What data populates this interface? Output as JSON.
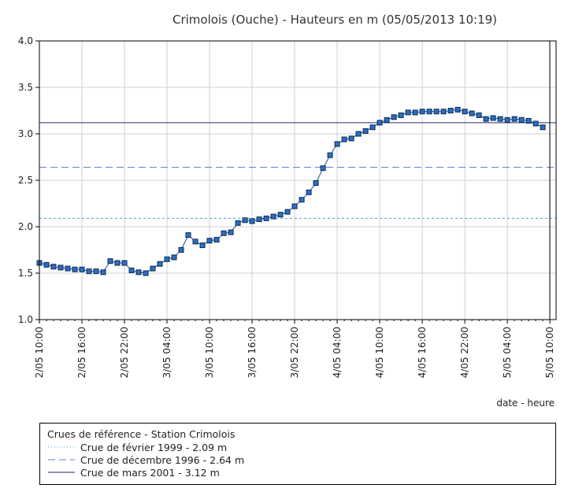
{
  "chart_data": {
    "type": "line",
    "title": "Crimolois (Ouche) - Hauteurs en m (05/05/2013 10:19)",
    "xlabel": "date - heure",
    "ylabel": "",
    "ylim": [
      1.0,
      4.0
    ],
    "yticks": [
      "1.0",
      "1.5",
      "2.0",
      "2.5",
      "3.0",
      "3.5",
      "4.0"
    ],
    "xticks": [
      "2/05 10:00",
      "2/05 16:00",
      "2/05 22:00",
      "3/05 04:00",
      "3/05 10:00",
      "3/05 16:00",
      "3/05 22:00",
      "4/05 04:00",
      "4/05 10:00",
      "4/05 16:00",
      "4/05 22:00",
      "5/05 04:00",
      "5/05 10:00"
    ],
    "x_hours_range": [
      0,
      72
    ],
    "grid": true,
    "series": [
      {
        "color": "#1f4e8c",
        "marker_color": "#2b6fc4",
        "x_hours": [
          0,
          1,
          2,
          3,
          4,
          5,
          6,
          7,
          8,
          9,
          10,
          11,
          12,
          13,
          14,
          15,
          16,
          17,
          18,
          19,
          20,
          21,
          22,
          23,
          24,
          25,
          26,
          27,
          28,
          29,
          30,
          31,
          32,
          33,
          34,
          35,
          36,
          37,
          38,
          39,
          40,
          41,
          42,
          43,
          44,
          45,
          46,
          47,
          48,
          49,
          50,
          51,
          52,
          53,
          54,
          55,
          56,
          57,
          58,
          59,
          60,
          61,
          62,
          63,
          64,
          65,
          66,
          67,
          68,
          69,
          70,
          71
        ],
        "values": [
          1.61,
          1.59,
          1.57,
          1.56,
          1.55,
          1.54,
          1.54,
          1.52,
          1.52,
          1.51,
          1.63,
          1.61,
          1.61,
          1.53,
          1.51,
          1.5,
          1.55,
          1.6,
          1.65,
          1.67,
          1.75,
          1.91,
          1.84,
          1.8,
          1.85,
          1.86,
          1.93,
          1.94,
          2.04,
          2.07,
          2.06,
          2.08,
          2.09,
          2.11,
          2.13,
          2.16,
          2.22,
          2.29,
          2.37,
          2.47,
          2.63,
          2.77,
          2.89,
          2.94,
          2.95,
          3.0,
          3.03,
          3.07,
          3.12,
          3.15,
          3.18,
          3.2,
          3.23,
          3.23,
          3.24,
          3.24,
          3.24,
          3.24,
          3.25,
          3.26,
          3.24,
          3.22,
          3.2,
          3.16,
          3.17,
          3.16,
          3.15,
          3.16,
          3.15,
          3.14,
          3.11,
          3.07
        ]
      }
    ],
    "reference_lines": [
      {
        "label": "Crue de février 1999 - 2.09 m",
        "value": 2.09,
        "color": "#4aa3d8",
        "dash": "dotted"
      },
      {
        "label": "Crue de décembre 1996 - 2.64 m",
        "value": 2.64,
        "color": "#6a7fd6",
        "dash": "dashed"
      },
      {
        "label": "Crue de mars 2001 - 3.12 m",
        "value": 3.12,
        "color": "#2a2a6a",
        "dash": "solid"
      }
    ],
    "legend": {
      "title": "Crues de référence - Station Crimolois",
      "placement": "bottom"
    }
  }
}
